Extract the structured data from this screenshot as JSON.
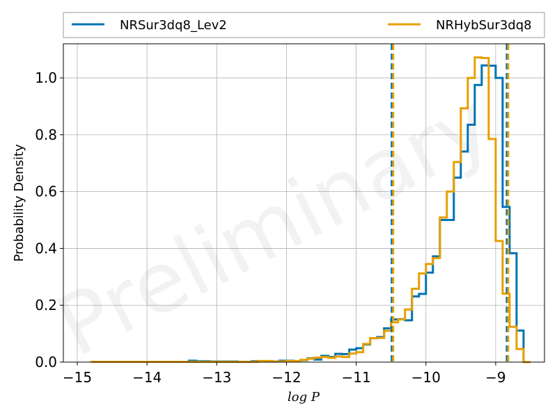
{
  "chart_data": {
    "type": "step-histogram",
    "title": "",
    "xlabel": "log P",
    "ylabel": "Probability Density",
    "xlim": [
      -15.2,
      -8.3
    ],
    "ylim": [
      0,
      1.12
    ],
    "xticks": [
      -15,
      -14,
      -13,
      -12,
      -11,
      -10,
      -9
    ],
    "xtick_labels": [
      "−15",
      "−14",
      "−13",
      "−12",
      "−11",
      "−10",
      "−9"
    ],
    "yticks": [
      0.0,
      0.2,
      0.4,
      0.6,
      0.8,
      1.0
    ],
    "ytick_labels": [
      "0.0",
      "0.2",
      "0.4",
      "0.6",
      "0.8",
      "1.0"
    ],
    "grid": true,
    "legend_position": "top",
    "watermark": "Preliminary",
    "series": [
      {
        "name": "NRSur3dq8_Lev2",
        "color": "#0072B2",
        "bin_edges": [
          -13.4,
          -13.3,
          -13.1,
          -12.9,
          -12.7,
          -12.5,
          -12.3,
          -12.1,
          -11.9,
          -11.8,
          -11.7,
          -11.6,
          -11.5,
          -11.4,
          -11.3,
          -11.2,
          -11.1,
          -11.0,
          -10.9,
          -10.8,
          -10.7,
          -10.6,
          -10.5,
          -10.4,
          -10.3,
          -10.2,
          -10.1,
          -10.0,
          -9.9,
          -9.8,
          -9.7,
          -9.6,
          -9.5,
          -9.4,
          -9.3,
          -9.2,
          -9.1,
          -9.0,
          -8.9,
          -8.8,
          -8.7,
          -8.6,
          -8.5
        ],
        "densities": [
          0.005,
          0.003,
          0.002,
          0.002,
          0.001,
          0.003,
          0.002,
          0.005,
          0.003,
          0.007,
          0.013,
          0.009,
          0.022,
          0.018,
          0.029,
          0.028,
          0.044,
          0.049,
          0.062,
          0.084,
          0.088,
          0.119,
          0.15,
          0.151,
          0.147,
          0.231,
          0.24,
          0.315,
          0.372,
          0.5,
          0.5,
          0.649,
          0.741,
          0.835,
          0.975,
          1.044,
          1.043,
          1.0,
          0.546,
          0.383,
          0.111,
          0.0
        ]
      },
      {
        "name": "NRHybSur3dq8",
        "color": "#E69F00",
        "bin_edges": [
          -14.8,
          -12.4,
          -12.2,
          -12.0,
          -11.8,
          -11.7,
          -11.6,
          -11.5,
          -11.4,
          -11.3,
          -11.2,
          -11.1,
          -11.0,
          -10.9,
          -10.8,
          -10.7,
          -10.6,
          -10.5,
          -10.4,
          -10.3,
          -10.2,
          -10.1,
          -10.0,
          -9.9,
          -9.8,
          -9.7,
          -9.6,
          -9.5,
          -9.4,
          -9.3,
          -9.2,
          -9.1,
          -9.0,
          -8.9,
          -8.8,
          -8.7,
          -8.6,
          -8.5
        ],
        "densities": [
          0.001,
          0.004,
          0.002,
          0.004,
          0.008,
          0.012,
          0.016,
          0.018,
          0.015,
          0.02,
          0.018,
          0.03,
          0.035,
          0.064,
          0.084,
          0.085,
          0.11,
          0.14,
          0.15,
          0.185,
          0.258,
          0.312,
          0.345,
          0.366,
          0.509,
          0.6,
          0.704,
          0.893,
          1.0,
          1.072,
          1.07,
          0.785,
          0.426,
          0.241,
          0.124,
          0.046,
          0.0
        ]
      }
    ],
    "reference_lines": [
      {
        "series": "NRSur3dq8_Lev2",
        "x": -10.49,
        "color": "#0072B2"
      },
      {
        "series": "NRSur3dq8_Lev2",
        "x": -8.84,
        "color": "#0072B2"
      },
      {
        "series": "NRHybSur3dq8",
        "x": -10.47,
        "color": "#E69F00"
      },
      {
        "series": "NRHybSur3dq8",
        "x": -8.82,
        "color": "#E69F00"
      }
    ]
  }
}
